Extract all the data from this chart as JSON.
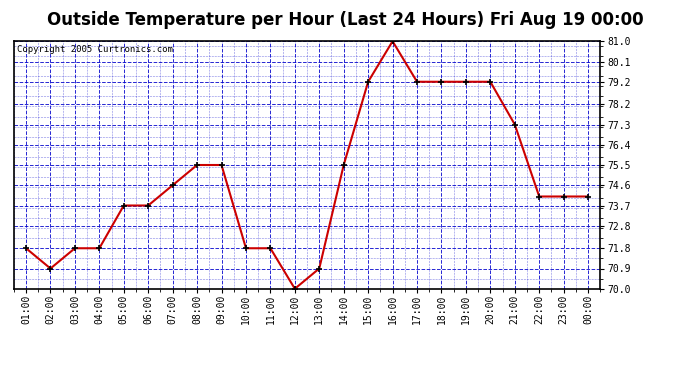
{
  "title": "Outside Temperature per Hour (Last 24 Hours) Fri Aug 19 00:00",
  "copyright": "Copyright 2005 Curtronics.com",
  "hours": [
    "01:00",
    "02:00",
    "03:00",
    "04:00",
    "05:00",
    "06:00",
    "07:00",
    "08:00",
    "09:00",
    "10:00",
    "11:00",
    "12:00",
    "13:00",
    "14:00",
    "15:00",
    "16:00",
    "17:00",
    "18:00",
    "19:00",
    "20:00",
    "21:00",
    "22:00",
    "23:00",
    "00:00"
  ],
  "temps": [
    71.8,
    70.9,
    71.8,
    71.8,
    73.7,
    73.7,
    74.6,
    75.5,
    75.5,
    71.8,
    71.8,
    70.0,
    70.9,
    75.5,
    79.2,
    81.0,
    79.2,
    79.2,
    79.2,
    79.2,
    77.3,
    74.1,
    74.1,
    74.1
  ],
  "ylim": [
    70.0,
    81.0
  ],
  "yticks": [
    70.0,
    70.9,
    71.8,
    72.8,
    73.7,
    74.6,
    75.5,
    76.4,
    77.3,
    78.2,
    79.2,
    80.1,
    81.0
  ],
  "ytick_labels": [
    "70.0",
    "70.9",
    "71.8",
    "72.8",
    "73.7",
    "74.6",
    "75.5",
    "76.4",
    "77.3",
    "78.2",
    "79.2",
    "80.1",
    "81.0"
  ],
  "line_color": "#cc0000",
  "marker_color": "#000000",
  "fig_bg_color": "#ffffff",
  "plot_bg_color": "#ffffff",
  "grid_color": "#0000cc",
  "border_color": "#000000",
  "title_fontsize": 12,
  "tick_fontsize": 7,
  "copyright_fontsize": 6.5
}
